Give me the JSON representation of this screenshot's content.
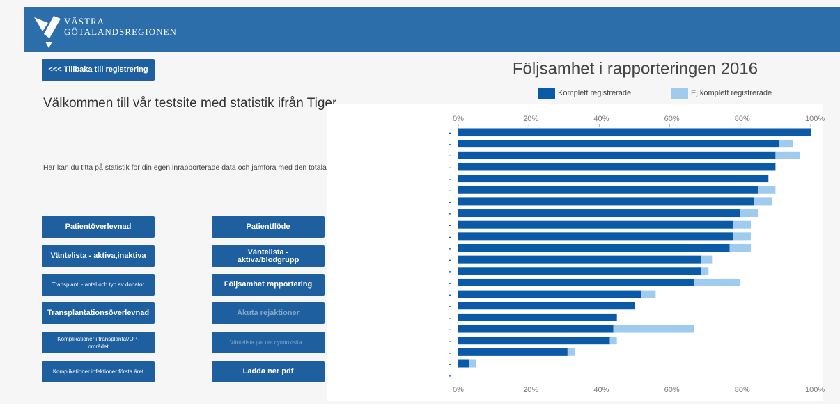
{
  "header": {
    "logo_line1": "VÄSTRA",
    "logo_line2": "GÖTALANDSREGIONEN"
  },
  "back_button": "<<< Tillbaka till registrering",
  "welcome": "Välkommen till vår testsite med statistik ifrån Tiger.",
  "intro": "Här kan du titta på statistik för din egen inrapporterade data och jämföra med den totala statistiken.",
  "buttons": [
    {
      "label": "Patientöverlevnad",
      "enabled": true
    },
    {
      "label": "Patientflöde",
      "enabled": true
    },
    {
      "label": "Väntelista - aktiva,inaktiva",
      "enabled": true
    },
    {
      "label": "Väntelista - aktiva/blodgrupp",
      "enabled": true
    },
    {
      "label": "Transplant. - antal och typ av donator",
      "enabled": true
    },
    {
      "label": "Följsamhet rapportering",
      "enabled": true
    },
    {
      "label": "Transplantationsöverlevnad",
      "enabled": true
    },
    {
      "label": "Akuta rejaktioner",
      "enabled": false
    },
    {
      "label": "Komplikationer  i transplantat/OP-området",
      "enabled": true
    },
    {
      "label": "Väntelista pat uta cytotoxiska...",
      "enabled": false
    },
    {
      "label": "Komplikationer infektioner första året",
      "enabled": true
    },
    {
      "label": "Ladda ner pdf",
      "enabled": true
    }
  ],
  "chart_data": {
    "type": "bar",
    "orientation": "horizontal",
    "stacked": true,
    "title": "Följsamhet i rapporteringen 2016",
    "categories": [
      "-",
      "-",
      "-",
      "-",
      "-",
      "-",
      "-",
      "-",
      "-",
      "-",
      "-",
      "-",
      "-",
      "-",
      "-",
      "-",
      "-",
      "-",
      "-",
      "-",
      "-",
      "-"
    ],
    "series": [
      {
        "name": "Komplett registrerade",
        "color": "#0b5aa7",
        "values": [
          100,
          91,
          90,
          90,
          88,
          85,
          84,
          80,
          78,
          78,
          77,
          69,
          69,
          67,
          52,
          50,
          45,
          44,
          43,
          31,
          3,
          null
        ]
      },
      {
        "name": "Ej komplett registrerade",
        "color": "#9ecbee",
        "values": [
          0,
          4,
          7,
          0,
          0,
          5,
          5,
          5,
          5,
          5,
          6,
          3,
          2,
          13,
          4,
          0,
          0,
          23,
          2,
          2,
          2,
          null
        ]
      }
    ],
    "xlim": [
      0,
      100
    ],
    "xticks": [
      {
        "value": 0,
        "label": "0%"
      },
      {
        "value": 20,
        "label": "20%"
      },
      {
        "value": 40,
        "label": "40%"
      },
      {
        "value": 60,
        "label": "60%"
      },
      {
        "value": 80,
        "label": "80%"
      },
      {
        "value": 100,
        "label": "100%"
      }
    ]
  }
}
